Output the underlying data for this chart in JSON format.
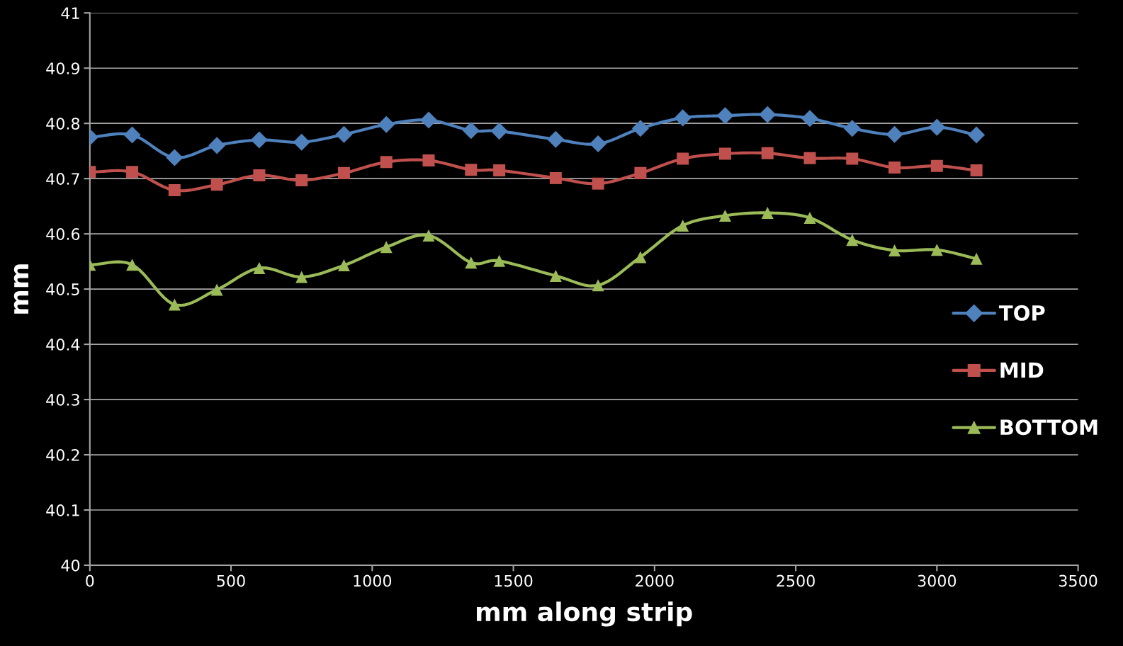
{
  "chart_data": {
    "type": "line",
    "xlabel": "mm along strip",
    "ylabel": "mm",
    "x": [
      0,
      150,
      300,
      450,
      600,
      750,
      900,
      1050,
      1200,
      1350,
      1450,
      1650,
      1800,
      1950,
      2100,
      2250,
      2400,
      2550,
      2700,
      2850,
      3000,
      3140
    ],
    "series": [
      {
        "name": "TOP",
        "color": "#4f81bd",
        "marker": "diamond",
        "values": [
          40.775,
          40.779,
          40.738,
          40.76,
          40.77,
          40.766,
          40.78,
          40.798,
          40.806,
          40.787,
          40.786,
          40.771,
          40.763,
          40.791,
          40.81,
          40.814,
          40.816,
          40.809,
          40.791,
          40.78,
          40.793,
          40.779
        ]
      },
      {
        "name": "MID",
        "color": "#c0504d",
        "marker": "square",
        "values": [
          40.712,
          40.712,
          40.679,
          40.689,
          40.706,
          40.697,
          40.71,
          40.73,
          40.733,
          40.716,
          40.715,
          40.701,
          40.691,
          40.71,
          40.736,
          40.745,
          40.746,
          40.737,
          40.736,
          40.72,
          40.723,
          40.715
        ]
      },
      {
        "name": "BOTTOM",
        "color": "#9bbb59",
        "marker": "triangle",
        "values": [
          40.544,
          40.544,
          40.472,
          40.499,
          40.538,
          40.522,
          40.543,
          40.576,
          40.597,
          40.548,
          40.551,
          40.524,
          40.507,
          40.558,
          40.615,
          40.633,
          40.638,
          40.629,
          40.589,
          40.57,
          40.571,
          40.555
        ]
      }
    ],
    "xlim": [
      0,
      3500
    ],
    "xticks": [
      0,
      500,
      1000,
      1500,
      2000,
      2500,
      3000,
      3500
    ],
    "ylim": [
      40,
      41
    ],
    "yticks": [
      40,
      40.1,
      40.2,
      40.3,
      40.4,
      40.5,
      40.6,
      40.7,
      40.8,
      40.9,
      41
    ],
    "grid": "y",
    "legend": "right",
    "line_style": "solid"
  }
}
